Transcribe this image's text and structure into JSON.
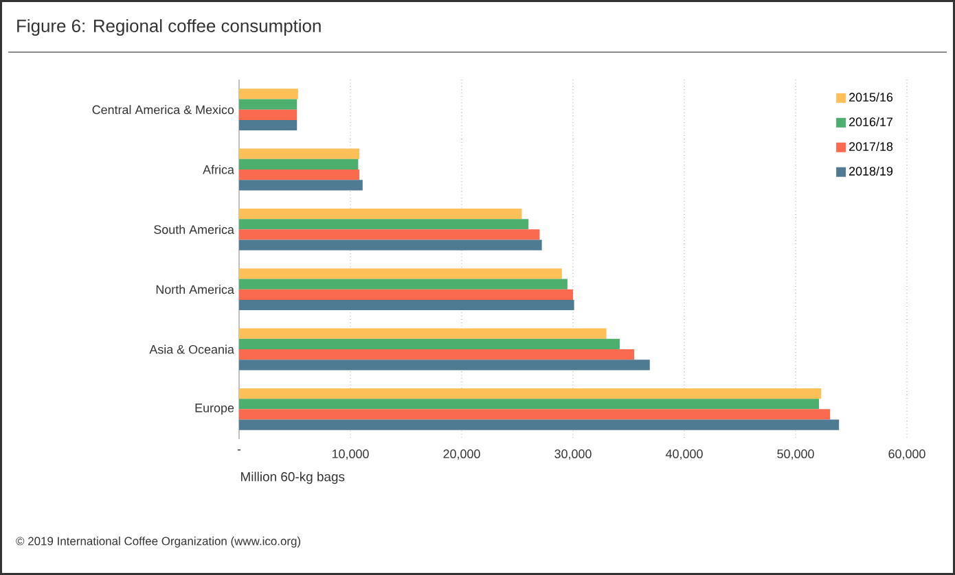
{
  "chart_data": {
    "type": "bar",
    "orientation": "horizontal",
    "title": "Figure 6: Regional coffee consumption",
    "xlabel": "Million 60-kg bags",
    "categories": [
      "Central America & Mexico",
      "Africa",
      "South America",
      "North America",
      "Asia & Oceania",
      "Europe"
    ],
    "series": [
      {
        "name": "2015/16",
        "color": "#fdbf57",
        "values": [
          5300,
          10800,
          25400,
          29000,
          33000,
          52300
        ]
      },
      {
        "name": "2016/17",
        "color": "#4caf6e",
        "values": [
          5200,
          10700,
          26000,
          29500,
          34200,
          52100
        ]
      },
      {
        "name": "2017/18",
        "color": "#f96a4f",
        "values": [
          5200,
          10800,
          27000,
          30000,
          35500,
          53100
        ]
      },
      {
        "name": "2018/19",
        "color": "#4e7a92",
        "values": [
          5200,
          11100,
          27200,
          30100,
          36900,
          53900
        ]
      }
    ],
    "xlim": [
      0,
      60000
    ],
    "xticks": [
      {
        "value": 0,
        "label": "-"
      },
      {
        "value": 10000,
        "label": "10,000"
      },
      {
        "value": 20000,
        "label": "20,000"
      },
      {
        "value": 30000,
        "label": "30,000"
      },
      {
        "value": 40000,
        "label": "40,000"
      },
      {
        "value": 50000,
        "label": "50,000"
      },
      {
        "value": 60000,
        "label": "60,000"
      }
    ],
    "grid": "x",
    "legend": "top right",
    "annotations": [
      "© 2019 International Coffee Organization (www.ico.org)"
    ]
  }
}
